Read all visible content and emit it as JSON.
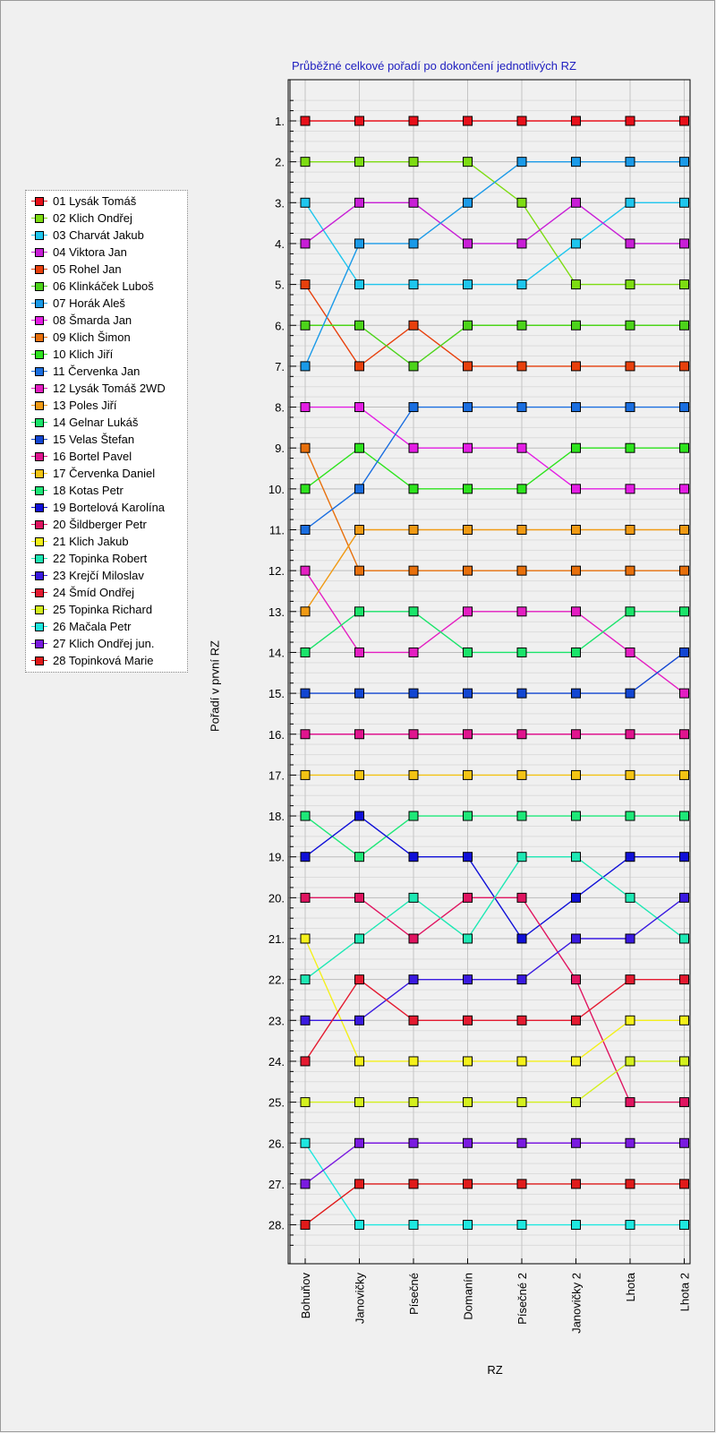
{
  "chart_data": {
    "type": "line",
    "title": "Průběžné celkové pořadí po dokončení jednotlivých RZ",
    "xlabel": "RZ",
    "ylabel": "Pořadí v první RZ",
    "categories": [
      "Bohuňov",
      "Janovičky",
      "Písečné",
      "Domanín",
      "Písečné 2",
      "Janovičky 2",
      "Lhota",
      "Lhota 2"
    ],
    "y_ticks": [
      "1.",
      "2.",
      "3.",
      "4.",
      "5.",
      "6.",
      "7.",
      "8.",
      "9.",
      "10.",
      "11.",
      "12.",
      "13.",
      "14.",
      "15.",
      "16.",
      "17.",
      "18.",
      "19.",
      "20.",
      "21.",
      "22.",
      "23.",
      "24.",
      "25.",
      "26.",
      "27.",
      "28."
    ],
    "ylim": [
      1,
      28
    ],
    "y_inverted": true,
    "grid": true,
    "legend_position": "left",
    "series": [
      {
        "name": "01 Lysák Tomáš",
        "color": "#e8101a",
        "values": [
          1,
          1,
          1,
          1,
          1,
          1,
          1,
          1
        ]
      },
      {
        "name": "02 Klich Ondřej",
        "color": "#7ddc12",
        "values": [
          2,
          2,
          2,
          2,
          3,
          5,
          5,
          5
        ]
      },
      {
        "name": "03 Charvát Jakub",
        "color": "#1ec6ee",
        "values": [
          3,
          5,
          5,
          5,
          5,
          4,
          3,
          3
        ]
      },
      {
        "name": "04 Viktora Jan",
        "color": "#c81ed6",
        "values": [
          4,
          3,
          3,
          4,
          4,
          3,
          4,
          4
        ]
      },
      {
        "name": "05 Rohel Jan",
        "color": "#e8400c",
        "values": [
          5,
          7,
          6,
          7,
          7,
          7,
          7,
          7
        ]
      },
      {
        "name": "06 Klinkáček Luboš",
        "color": "#4cd41a",
        "values": [
          6,
          6,
          7,
          6,
          6,
          6,
          6,
          6
        ]
      },
      {
        "name": "07 Horák Aleš",
        "color": "#1a9ae8",
        "values": [
          7,
          4,
          4,
          3,
          2,
          2,
          2,
          2
        ]
      },
      {
        "name": "08 Šmarda Jan",
        "color": "#e41ee4",
        "values": [
          8,
          8,
          9,
          9,
          9,
          10,
          10,
          10
        ]
      },
      {
        "name": "09 Klich Šimon",
        "color": "#e8700c",
        "values": [
          9,
          12,
          12,
          12,
          12,
          12,
          12,
          12
        ]
      },
      {
        "name": "10 Klich Jiří",
        "color": "#2ee41e",
        "values": [
          10,
          9,
          10,
          10,
          10,
          9,
          9,
          9
        ]
      },
      {
        "name": "11 Červenka Jan",
        "color": "#1a6ee0",
        "values": [
          11,
          10,
          8,
          8,
          8,
          8,
          8,
          8
        ]
      },
      {
        "name": "12 Lysák Tomáš 2WD",
        "color": "#e41ec2",
        "values": [
          12,
          14,
          14,
          13,
          13,
          13,
          14,
          15
        ]
      },
      {
        "name": "13 Poles Jiří",
        "color": "#f09a14",
        "values": [
          13,
          11,
          11,
          11,
          11,
          11,
          11,
          11
        ]
      },
      {
        "name": "14 Gelnar Lukáš",
        "color": "#1ae46a",
        "values": [
          14,
          13,
          13,
          14,
          14,
          14,
          13,
          13
        ]
      },
      {
        "name": "15 Velas Štefan",
        "color": "#1246d2",
        "values": [
          15,
          15,
          15,
          15,
          15,
          15,
          15,
          14
        ]
      },
      {
        "name": "16 Bortel Pavel",
        "color": "#e0148e",
        "values": [
          16,
          16,
          16,
          16,
          16,
          16,
          16,
          16
        ]
      },
      {
        "name": "17 Červenka Daniel",
        "color": "#f4c414",
        "values": [
          17,
          17,
          17,
          17,
          17,
          17,
          17,
          17
        ]
      },
      {
        "name": "18 Kotas Petr",
        "color": "#1ee878",
        "values": [
          18,
          19,
          18,
          18,
          18,
          18,
          18,
          18
        ]
      },
      {
        "name": "19 Bortelová Karolína",
        "color": "#1010d8",
        "values": [
          19,
          18,
          19,
          19,
          21,
          20,
          19,
          19
        ]
      },
      {
        "name": "20 Šildberger Petr",
        "color": "#e01460",
        "values": [
          20,
          20,
          21,
          20,
          20,
          22,
          25,
          25
        ]
      },
      {
        "name": "21 Klich Jakub",
        "color": "#f4f01a",
        "values": [
          21,
          24,
          24,
          24,
          24,
          24,
          23,
          23
        ]
      },
      {
        "name": "22 Topinka Robert",
        "color": "#1ee8b4",
        "values": [
          22,
          21,
          20,
          21,
          19,
          19,
          20,
          21
        ]
      },
      {
        "name": "23 Krejčí Miloslav",
        "color": "#3a1ae0",
        "values": [
          23,
          23,
          22,
          22,
          22,
          21,
          21,
          20
        ]
      },
      {
        "name": "24 Šmíd Ondřej",
        "color": "#e41a30",
        "values": [
          24,
          22,
          23,
          23,
          23,
          23,
          22,
          22
        ]
      },
      {
        "name": "25 Topinka Richard",
        "color": "#d4f01e",
        "values": [
          25,
          25,
          25,
          25,
          25,
          25,
          24,
          24
        ]
      },
      {
        "name": "26 Mačala Petr",
        "color": "#1ee8e0",
        "values": [
          26,
          28,
          28,
          28,
          28,
          28,
          28,
          28
        ]
      },
      {
        "name": "27 Klich Ondřej jun.",
        "color": "#7a1ae0",
        "values": [
          27,
          26,
          26,
          26,
          26,
          26,
          26,
          26
        ]
      },
      {
        "name": "28 Topinková Marie",
        "color": "#e01a1a",
        "values": [
          28,
          27,
          27,
          27,
          27,
          27,
          27,
          27
        ]
      }
    ]
  }
}
